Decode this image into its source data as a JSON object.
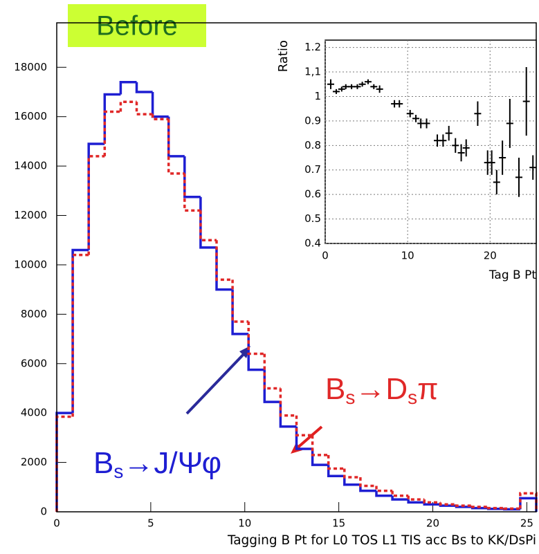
{
  "chart_data": [
    {
      "type": "histogram",
      "title": "Before",
      "x_label": "Tagging B Pt for L0 TOS L1 TIS acc Bs to KK/DsPi",
      "bins": [
        0,
        0.85,
        1.7,
        2.55,
        3.4,
        4.25,
        5.1,
        5.95,
        6.8,
        7.65,
        8.5,
        9.35,
        10.2,
        11.05,
        11.9,
        12.75,
        13.6,
        14.45,
        15.3,
        16.15,
        17,
        17.85,
        18.7,
        19.55,
        20.4,
        21.25,
        22.1,
        22.95,
        23.8,
        24.65,
        25.5
      ],
      "series": [
        {
          "name": "Bs→J/Ψφ",
          "color": "#1e1ed2",
          "style": "solid",
          "label_parts": [
            "B",
            "s",
            "→J/Ψφ"
          ],
          "values": [
            4000,
            10600,
            14900,
            16900,
            17400,
            17000,
            16000,
            14400,
            12750,
            10700,
            9000,
            7200,
            5750,
            4450,
            3450,
            2550,
            1900,
            1450,
            1100,
            850,
            650,
            500,
            380,
            300,
            250,
            200,
            150,
            120,
            100,
            550
          ]
        },
        {
          "name": "Bs→Dsπ",
          "color": "#e02828",
          "style": "dotted",
          "label_parts": [
            "B",
            "s",
            "→D",
            "s",
            "π"
          ],
          "values": [
            3850,
            10400,
            14400,
            16200,
            16600,
            16100,
            15900,
            13700,
            12200,
            11000,
            9400,
            7700,
            6400,
            5000,
            3900,
            3100,
            2300,
            1750,
            1400,
            1050,
            850,
            650,
            500,
            380,
            300,
            250,
            200,
            150,
            130,
            750
          ]
        }
      ],
      "xlim": [
        0,
        25.5
      ],
      "xticks": [
        0,
        5,
        10,
        15,
        20,
        25
      ],
      "ylim": [
        0,
        19800
      ],
      "yticks": [
        0,
        2000,
        4000,
        6000,
        8000,
        10000,
        12000,
        14000,
        16000,
        18000
      ]
    },
    {
      "type": "errorbar",
      "y_label": "Ratio",
      "x_label": "Tag B Pt",
      "color": "#000000",
      "grid": true,
      "x": [
        0.67,
        1.34,
        2.0,
        2.5,
        3.2,
        3.9,
        4.5,
        5.2,
        5.9,
        6.6,
        8.4,
        9.0,
        10.3,
        11.0,
        11.6,
        12.3,
        13.6,
        14.3,
        15.0,
        15.8,
        16.5,
        17.1,
        18.5,
        19.7,
        20.2,
        20.8,
        21.5,
        22.4,
        23.5,
        24.4,
        25.2
      ],
      "values": [
        1.05,
        1.02,
        1.03,
        1.04,
        1.04,
        1.04,
        1.05,
        1.06,
        1.04,
        1.03,
        0.97,
        0.97,
        0.93,
        0.91,
        0.89,
        0.89,
        0.82,
        0.82,
        0.85,
        0.8,
        0.77,
        0.79,
        0.93,
        0.73,
        0.73,
        0.65,
        0.75,
        0.89,
        0.67,
        0.98,
        0.71
      ],
      "errors": [
        0.02,
        0.01,
        0.01,
        0.01,
        0.01,
        0.01,
        0.01,
        0.01,
        0.01,
        0.015,
        0.015,
        0.015,
        0.015,
        0.015,
        0.02,
        0.02,
        0.025,
        0.025,
        0.03,
        0.03,
        0.035,
        0.035,
        0.05,
        0.05,
        0.05,
        0.05,
        0.07,
        0.1,
        0.08,
        0.14,
        0.05
      ],
      "xlim": [
        0,
        25.6
      ],
      "xticks": [
        0,
        10,
        20
      ],
      "ylim": [
        0.4,
        1.23
      ],
      "yticks": [
        0.4,
        0.5,
        0.6,
        0.7,
        0.8,
        0.9,
        1,
        {
          "value": 1.1,
          "label": "1,1"
        },
        1.2
      ]
    }
  ]
}
